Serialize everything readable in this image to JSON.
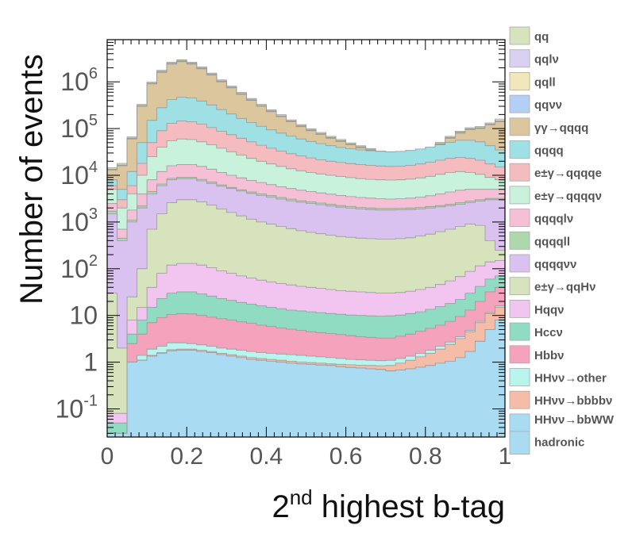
{
  "chart_data": {
    "type": "area",
    "stacked": true,
    "title": "",
    "xlabel": {
      "main": "2",
      "sup": "nd",
      "rest": " highest b-tag"
    },
    "ylabel": "Number of events",
    "xlim": [
      0,
      1
    ],
    "ylim": [
      0.025,
      8000000
    ],
    "yscale": "log",
    "grid": false,
    "legend_position": "right",
    "x_ticks": [
      {
        "value": 0,
        "label": "0"
      },
      {
        "value": 0.2,
        "label": "0.2"
      },
      {
        "value": 0.4,
        "label": "0.4"
      },
      {
        "value": 0.6,
        "label": "0.6"
      },
      {
        "value": 0.8,
        "label": "0.8"
      },
      {
        "value": 1,
        "label": "1"
      }
    ],
    "y_ticks": [
      {
        "value": 0.1,
        "base": "10",
        "exp": "-1"
      },
      {
        "value": 1,
        "base": "1",
        "exp": ""
      },
      {
        "value": 10,
        "base": "10",
        "exp": ""
      },
      {
        "value": 100,
        "base": "10",
        "exp": "2"
      },
      {
        "value": 1000,
        "base": "10",
        "exp": "3"
      },
      {
        "value": 10000,
        "base": "10",
        "exp": "4"
      },
      {
        "value": 100000,
        "base": "10",
        "exp": "5"
      },
      {
        "value": 1000000,
        "base": "10",
        "exp": "6"
      }
    ],
    "bin_edges": [
      0,
      0.025,
      0.05,
      0.075,
      0.1,
      0.125,
      0.15,
      0.175,
      0.2,
      0.225,
      0.25,
      0.275,
      0.3,
      0.325,
      0.35,
      0.375,
      0.4,
      0.425,
      0.45,
      0.475,
      0.5,
      0.525,
      0.55,
      0.575,
      0.6,
      0.625,
      0.65,
      0.675,
      0.7,
      0.725,
      0.75,
      0.775,
      0.8,
      0.825,
      0.85,
      0.875,
      0.9,
      0.925,
      0.95,
      0.975,
      1.0
    ],
    "envelopes": [
      {
        "name": "hadronic",
        "color": "#a9dcf2",
        "values": [
          0.03,
          0.03,
          1.0,
          1.1,
          1.35,
          1.55,
          1.75,
          1.8,
          1.8,
          1.7,
          1.6,
          1.45,
          1.35,
          1.25,
          1.15,
          1.1,
          1.05,
          1.0,
          0.95,
          0.92,
          0.9,
          0.87,
          0.85,
          0.8,
          0.77,
          0.75,
          0.72,
          0.7,
          0.65,
          0.68,
          0.72,
          0.78,
          0.85,
          0.95,
          1.05,
          1.25,
          1.7,
          2.8,
          5.0,
          8.0
        ]
      },
      {
        "name": "HHνν→bbWW",
        "color": "#a9dcf2",
        "values": [
          0.03,
          0.03,
          1.0,
          1.1,
          1.35,
          1.55,
          1.75,
          1.8,
          1.8,
          1.7,
          1.6,
          1.45,
          1.35,
          1.25,
          1.15,
          1.1,
          1.05,
          1.0,
          0.95,
          0.92,
          0.9,
          0.87,
          0.85,
          0.8,
          0.77,
          0.75,
          0.72,
          0.7,
          0.65,
          0.68,
          0.72,
          0.78,
          0.85,
          0.95,
          1.05,
          1.25,
          1.7,
          2.8,
          5.0,
          8.0
        ]
      },
      {
        "name": "HHνν→bbbbν",
        "color": "#f5bca8",
        "values": [
          0.03,
          0.03,
          1.0,
          1.1,
          1.4,
          1.6,
          1.85,
          1.9,
          1.9,
          1.8,
          1.7,
          1.55,
          1.45,
          1.35,
          1.25,
          1.2,
          1.15,
          1.1,
          1.05,
          1.0,
          0.98,
          0.95,
          0.92,
          0.9,
          0.88,
          0.86,
          0.85,
          0.84,
          0.85,
          0.95,
          1.1,
          1.3,
          1.55,
          1.9,
          2.4,
          3.2,
          4.5,
          7.0,
          11.0,
          15.0
        ]
      },
      {
        "name": "HHνν→other",
        "color": "#b8f5ee",
        "values": [
          0.03,
          0.03,
          1.0,
          1.4,
          1.9,
          2.2,
          2.6,
          2.6,
          2.5,
          2.35,
          2.2,
          2.0,
          1.9,
          1.8,
          1.7,
          1.6,
          1.55,
          1.5,
          1.45,
          1.4,
          1.35,
          1.3,
          1.25,
          1.2,
          1.15,
          1.12,
          1.1,
          1.08,
          1.1,
          1.2,
          1.35,
          1.55,
          1.8,
          2.2,
          2.7,
          3.5,
          4.8,
          7.5,
          11.5,
          16.0
        ]
      },
      {
        "name": "Hbbν",
        "color": "#f5a3bd",
        "values": [
          0.03,
          0.03,
          2.5,
          4.0,
          7.0,
          9.0,
          10.5,
          11.0,
          10.8,
          10.0,
          9.2,
          8.5,
          8.0,
          7.3,
          6.8,
          6.2,
          5.8,
          5.4,
          5.1,
          4.8,
          4.5,
          4.3,
          4.1,
          3.9,
          3.7,
          3.5,
          3.4,
          3.3,
          3.3,
          3.6,
          4.0,
          4.6,
          5.3,
          6.2,
          7.5,
          9.5,
          13.0,
          20.0,
          32.0,
          40.0
        ]
      },
      {
        "name": "Hccν",
        "color": "#8fdcc2",
        "values": [
          0.05,
          0.05,
          4.0,
          8.0,
          15.0,
          23.0,
          30.0,
          32.0,
          32.0,
          29.0,
          26.0,
          23.0,
          21.0,
          19.0,
          17.5,
          16.0,
          15.0,
          14.0,
          13.0,
          12.5,
          12.0,
          11.5,
          11.0,
          10.6,
          10.2,
          10.0,
          9.8,
          9.7,
          9.8,
          10.2,
          11.0,
          12.0,
          13.5,
          15.5,
          18.0,
          22.0,
          30.0,
          42.0,
          60.0,
          70.0
        ]
      },
      {
        "name": "Hqqν",
        "color": "#f2c4f0",
        "values": [
          0.08,
          0.08,
          8.0,
          15.0,
          40.0,
          80.0,
          120.0,
          130.0,
          130.0,
          120.0,
          105.0,
          90.0,
          80.0,
          70.0,
          63.0,
          57.0,
          52.0,
          48.0,
          45.0,
          42.0,
          40.0,
          38.0,
          36.0,
          34.0,
          33.0,
          32.0,
          31.0,
          30.0,
          30.0,
          31.0,
          33.0,
          36.0,
          40.0,
          46.0,
          55.0,
          68.0,
          88.0,
          115.0,
          140.0,
          150.0
        ]
      },
      {
        "name": "e±γ→qqHν",
        "color": "#d6e3bc",
        "values": [
          30.0,
          2.0,
          25.0,
          100.0,
          700.0,
          1500.0,
          2600.0,
          3000.0,
          3000.0,
          2700.0,
          2300.0,
          1900.0,
          1600.0,
          1350.0,
          1150.0,
          1000.0,
          900.0,
          800.0,
          720.0,
          650.0,
          600.0,
          560.0,
          520.0,
          490.0,
          470.0,
          450.0,
          440.0,
          430.0,
          430.0,
          440.0,
          460.0,
          500.0,
          550.0,
          620.0,
          700.0,
          800.0,
          900.0,
          850.0,
          400.0,
          250.0
        ]
      },
      {
        "name": "qqqqνν",
        "color": "#d9c2ef",
        "values": [
          1500.0,
          400.0,
          1000.0,
          2000.0,
          4000.0,
          6000.0,
          8000.0,
          8500.0,
          8500.0,
          7600.0,
          6700.0,
          5800.0,
          5200.0,
          4600.0,
          4100.0,
          3700.0,
          3400.0,
          3100.0,
          2850.0,
          2650.0,
          2500.0,
          2350.0,
          2200.0,
          2080.0,
          1980.0,
          1900.0,
          1850.0,
          1800.0,
          1800.0,
          1820.0,
          1850.0,
          1900.0,
          2000.0,
          2100.0,
          2250.0,
          2400.0,
          2600.0,
          2800.0,
          3000.0,
          3000.0
        ]
      },
      {
        "name": "qqqqll",
        "color": "#acd8ac",
        "values": [
          1700.0,
          450.0,
          1100.0,
          2200.0,
          4500.0,
          6500.0,
          8600.0,
          9100.0,
          9100.0,
          8200.0,
          7200.0,
          6200.0,
          5500.0,
          4900.0,
          4400.0,
          4000.0,
          3700.0,
          3350.0,
          3100.0,
          2850.0,
          2700.0,
          2550.0,
          2400.0,
          2250.0,
          2150.0,
          2050.0,
          2000.0,
          1950.0,
          1950.0,
          1970.0,
          2000.0,
          2050.0,
          2150.0,
          2250.0,
          2400.0,
          2600.0,
          2800.0,
          3000.0,
          3200.0,
          3200.0
        ]
      },
      {
        "name": "qqqqlν",
        "color": "#f5c0d6",
        "values": [
          2500.0,
          700.0,
          1800.0,
          4000.0,
          8000.0,
          12000.0,
          16000.0,
          17000.0,
          17000.0,
          15500.0,
          13500.0,
          11500.0,
          10000.0,
          8800.0,
          7800.0,
          7000.0,
          6300.0,
          5700.0,
          5200.0,
          4800.0,
          4500.0,
          4200.0,
          3950.0,
          3700.0,
          3500.0,
          3350.0,
          3250.0,
          3150.0,
          3100.0,
          3150.0,
          3250.0,
          3400.0,
          3650.0,
          4000.0,
          4400.0,
          4800.0,
          5000.0,
          5000.0,
          5000.0,
          5000.0
        ]
      },
      {
        "name": "e±γ→qqqqν",
        "color": "#c8f2dc",
        "values": [
          5000.0,
          2000.0,
          4000.0,
          10000.0,
          25000.0,
          40000.0,
          55000.0,
          60000.0,
          58000.0,
          52000.0,
          45000.0,
          38000.0,
          32000.0,
          27000.0,
          23000.0,
          20000.0,
          17500.0,
          15500.0,
          13800.0,
          12500.0,
          11500.0,
          10700.0,
          10000.0,
          9400.0,
          8900.0,
          8500.0,
          8200.0,
          8000.0,
          7900.0,
          8000.0,
          8300.0,
          8800.0,
          9500.0,
          10500.0,
          11500.0,
          12000.0,
          11500.0,
          10500.0,
          9000.0,
          8000.0
        ]
      },
      {
        "name": "e±γ→qqqqe",
        "color": "#f5bcc0",
        "values": [
          6000.0,
          3000.0,
          6000.0,
          18000.0,
          50000.0,
          90000.0,
          130000.0,
          145000.0,
          140000.0,
          125000.0,
          105000.0,
          88000.0,
          74000.0,
          62000.0,
          52000.0,
          44000.0,
          38000.0,
          33000.0,
          29000.0,
          26000.0,
          23500.0,
          21500.0,
          20000.0,
          18800.0,
          17800.0,
          17000.0,
          16300.0,
          15800.0,
          15500.0,
          15700.0,
          16300.0,
          17500.0,
          19000.0,
          21000.0,
          23000.0,
          24000.0,
          23000.0,
          21000.0,
          17500.0,
          15000.0
        ]
      },
      {
        "name": "qqqq",
        "color": "#9fe0e4",
        "values": [
          8000.0,
          5000.0,
          12000.0,
          50000.0,
          150000.0,
          280000.0,
          420000.0,
          470000.0,
          450000.0,
          390000.0,
          320000.0,
          255000.0,
          205000.0,
          165000.0,
          135000.0,
          112000.0,
          94000.0,
          80000.0,
          69000.0,
          60000.0,
          53000.0,
          47500.0,
          43000.0,
          39500.0,
          37000.0,
          35000.0,
          33500.0,
          32500.0,
          32000.0,
          32500.0,
          34000.0,
          36500.0,
          40000.0,
          45000.0,
          51000.0,
          56000.0,
          56000.0,
          52000.0,
          43000.0,
          35000.0
        ]
      },
      {
        "name": "γγ→qqqq",
        "color": "#dcc69e",
        "values": [
          13000.0,
          16000.0,
          60000.0,
          300000.0,
          900000.0,
          1600000.0,
          2400000.0,
          2700000.0,
          2400000.0,
          1900000.0,
          1400000.0,
          1000000.0,
          740000.0,
          540000.0,
          400000.0,
          300000.0,
          230000.0,
          180000.0,
          140000.0,
          110000.0,
          90000.0,
          75000.0,
          62000.0,
          53000.0,
          45000.0,
          39000.0,
          34000.0,
          30000.0,
          27000.0,
          26000.0,
          27000.0,
          30000.0,
          36000.0,
          46000.0,
          62000.0,
          80000.0,
          95000.0,
          100000.0,
          120000.0,
          140000.0
        ]
      },
      {
        "name": "qqνν",
        "color": "#b3cff5",
        "values": [
          13200,
          16250,
          61000,
          305000,
          915000,
          1630000,
          2440000,
          2750000,
          2450000,
          1935000,
          1425000,
          1018000,
          753000,
          550000,
          407000,
          305000,
          234000,
          183000,
          142500,
          112000,
          91500,
          76300,
          63100,
          53900,
          45800,
          39700,
          34600,
          30500,
          27500,
          26500,
          27500,
          30500,
          36600,
          46800,
          63100,
          81400,
          96700,
          101800,
          122000,
          142500
        ]
      },
      {
        "name": "qqll",
        "color": "#f2e6bb",
        "values": [
          13300,
          16350,
          61500,
          307000,
          920000,
          1640000,
          2455000,
          2765000,
          2465000,
          1946000,
          1433000,
          1024000,
          757000,
          553000,
          409500,
          307000,
          235500,
          184000,
          143400,
          112700,
          92100,
          76800,
          63500,
          54300,
          46100,
          39900,
          34800,
          30700,
          27600,
          26700,
          27700,
          30700,
          36800,
          47100,
          63500,
          81900,
          97300,
          102400,
          122700,
          143400
        ]
      },
      {
        "name": "qqlν",
        "color": "#d9d0f2",
        "values": [
          13500,
          16600,
          62500,
          312000,
          935000,
          1665000,
          2490000,
          2805000,
          2500000,
          1975000,
          1455000,
          1040000,
          769000,
          562000,
          416000,
          312000,
          239000,
          187000,
          145700,
          114500,
          93600,
          78000,
          64500,
          55100,
          46800,
          40500,
          35300,
          31200,
          28100,
          27100,
          28100,
          31200,
          37400,
          47800,
          64500,
          83200,
          98800,
          104000,
          124700,
          145700
        ]
      },
      {
        "name": "qq",
        "color": "#d6e3bc",
        "values": [
          14500,
          18000,
          66000,
          330000,
          990000,
          1760000,
          2640000,
          2970000,
          2640000,
          2090000,
          1540000,
          1100000,
          814000,
          594000,
          440000,
          330000,
          253000,
          198000,
          154000,
          121000,
          99000,
          82500,
          68200,
          58300,
          49500,
          42900,
          37400,
          33000,
          29700,
          28600,
          29700,
          33000,
          39600,
          50600,
          68200,
          88000,
          104500,
          110000,
          132000,
          160000
        ]
      }
    ],
    "legend": [
      {
        "label": "qq",
        "color": "#d6e3bc"
      },
      {
        "label": "qqlν",
        "color": "#d9d0f2"
      },
      {
        "label": "qqll",
        "color": "#f2e6bb"
      },
      {
        "label": "qqνν",
        "color": "#b3cff5"
      },
      {
        "label": "γγ→qqqq",
        "color": "#dcc69e"
      },
      {
        "label": "qqqq",
        "color": "#9fe0e4"
      },
      {
        "label": "e±γ→qqqqe",
        "color": "#f5bcc0"
      },
      {
        "label": "e±γ→qqqqν",
        "color": "#c8f2dc"
      },
      {
        "label": "qqqqlν",
        "color": "#f5c0d6"
      },
      {
        "label": "qqqqll",
        "color": "#acd8ac"
      },
      {
        "label": "qqqqνν",
        "color": "#d9c2ef"
      },
      {
        "label": "e±γ→qqHν",
        "color": "#d6e3bc"
      },
      {
        "label": "Hqqν",
        "color": "#f2c4f0"
      },
      {
        "label": "Hccν",
        "color": "#8fdcc2"
      },
      {
        "label": "Hbbν",
        "color": "#f5a3bd"
      },
      {
        "label": "HHνν→other",
        "color": "#b8f5ee"
      },
      {
        "label": "HHνν→bbbbν",
        "color": "#f5bca8"
      },
      {
        "label": "HHνν→bbWW",
        "color": "#a9dcf2"
      },
      {
        "label": "hadronic",
        "color": "#a9dcf2"
      }
    ]
  }
}
